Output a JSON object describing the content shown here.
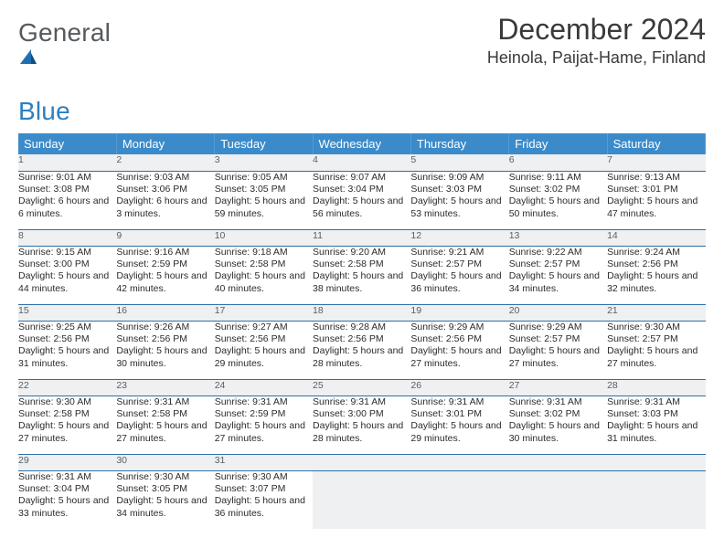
{
  "brand": {
    "name_a": "General",
    "name_b": "Blue",
    "accent": "#2f7fc0"
  },
  "title": "December 2024",
  "location": "Heinola, Paijat-Hame, Finland",
  "header_bg": "#3b8bca",
  "daynum_bg": "#eef0f2",
  "rule_color": "#2f6fa8",
  "weekdays": [
    "Sunday",
    "Monday",
    "Tuesday",
    "Wednesday",
    "Thursday",
    "Friday",
    "Saturday"
  ],
  "weeks": [
    {
      "days": [
        {
          "n": "1",
          "sunrise": "Sunrise: 9:01 AM",
          "sunset": "Sunset: 3:08 PM",
          "daylight": "Daylight: 6 hours and 6 minutes."
        },
        {
          "n": "2",
          "sunrise": "Sunrise: 9:03 AM",
          "sunset": "Sunset: 3:06 PM",
          "daylight": "Daylight: 6 hours and 3 minutes."
        },
        {
          "n": "3",
          "sunrise": "Sunrise: 9:05 AM",
          "sunset": "Sunset: 3:05 PM",
          "daylight": "Daylight: 5 hours and 59 minutes."
        },
        {
          "n": "4",
          "sunrise": "Sunrise: 9:07 AM",
          "sunset": "Sunset: 3:04 PM",
          "daylight": "Daylight: 5 hours and 56 minutes."
        },
        {
          "n": "5",
          "sunrise": "Sunrise: 9:09 AM",
          "sunset": "Sunset: 3:03 PM",
          "daylight": "Daylight: 5 hours and 53 minutes."
        },
        {
          "n": "6",
          "sunrise": "Sunrise: 9:11 AM",
          "sunset": "Sunset: 3:02 PM",
          "daylight": "Daylight: 5 hours and 50 minutes."
        },
        {
          "n": "7",
          "sunrise": "Sunrise: 9:13 AM",
          "sunset": "Sunset: 3:01 PM",
          "daylight": "Daylight: 5 hours and 47 minutes."
        }
      ]
    },
    {
      "days": [
        {
          "n": "8",
          "sunrise": "Sunrise: 9:15 AM",
          "sunset": "Sunset: 3:00 PM",
          "daylight": "Daylight: 5 hours and 44 minutes."
        },
        {
          "n": "9",
          "sunrise": "Sunrise: 9:16 AM",
          "sunset": "Sunset: 2:59 PM",
          "daylight": "Daylight: 5 hours and 42 minutes."
        },
        {
          "n": "10",
          "sunrise": "Sunrise: 9:18 AM",
          "sunset": "Sunset: 2:58 PM",
          "daylight": "Daylight: 5 hours and 40 minutes."
        },
        {
          "n": "11",
          "sunrise": "Sunrise: 9:20 AM",
          "sunset": "Sunset: 2:58 PM",
          "daylight": "Daylight: 5 hours and 38 minutes."
        },
        {
          "n": "12",
          "sunrise": "Sunrise: 9:21 AM",
          "sunset": "Sunset: 2:57 PM",
          "daylight": "Daylight: 5 hours and 36 minutes."
        },
        {
          "n": "13",
          "sunrise": "Sunrise: 9:22 AM",
          "sunset": "Sunset: 2:57 PM",
          "daylight": "Daylight: 5 hours and 34 minutes."
        },
        {
          "n": "14",
          "sunrise": "Sunrise: 9:24 AM",
          "sunset": "Sunset: 2:56 PM",
          "daylight": "Daylight: 5 hours and 32 minutes."
        }
      ]
    },
    {
      "days": [
        {
          "n": "15",
          "sunrise": "Sunrise: 9:25 AM",
          "sunset": "Sunset: 2:56 PM",
          "daylight": "Daylight: 5 hours and 31 minutes."
        },
        {
          "n": "16",
          "sunrise": "Sunrise: 9:26 AM",
          "sunset": "Sunset: 2:56 PM",
          "daylight": "Daylight: 5 hours and 30 minutes."
        },
        {
          "n": "17",
          "sunrise": "Sunrise: 9:27 AM",
          "sunset": "Sunset: 2:56 PM",
          "daylight": "Daylight: 5 hours and 29 minutes."
        },
        {
          "n": "18",
          "sunrise": "Sunrise: 9:28 AM",
          "sunset": "Sunset: 2:56 PM",
          "daylight": "Daylight: 5 hours and 28 minutes."
        },
        {
          "n": "19",
          "sunrise": "Sunrise: 9:29 AM",
          "sunset": "Sunset: 2:56 PM",
          "daylight": "Daylight: 5 hours and 27 minutes."
        },
        {
          "n": "20",
          "sunrise": "Sunrise: 9:29 AM",
          "sunset": "Sunset: 2:57 PM",
          "daylight": "Daylight: 5 hours and 27 minutes."
        },
        {
          "n": "21",
          "sunrise": "Sunrise: 9:30 AM",
          "sunset": "Sunset: 2:57 PM",
          "daylight": "Daylight: 5 hours and 27 minutes."
        }
      ]
    },
    {
      "days": [
        {
          "n": "22",
          "sunrise": "Sunrise: 9:30 AM",
          "sunset": "Sunset: 2:58 PM",
          "daylight": "Daylight: 5 hours and 27 minutes."
        },
        {
          "n": "23",
          "sunrise": "Sunrise: 9:31 AM",
          "sunset": "Sunset: 2:58 PM",
          "daylight": "Daylight: 5 hours and 27 minutes."
        },
        {
          "n": "24",
          "sunrise": "Sunrise: 9:31 AM",
          "sunset": "Sunset: 2:59 PM",
          "daylight": "Daylight: 5 hours and 27 minutes."
        },
        {
          "n": "25",
          "sunrise": "Sunrise: 9:31 AM",
          "sunset": "Sunset: 3:00 PM",
          "daylight": "Daylight: 5 hours and 28 minutes."
        },
        {
          "n": "26",
          "sunrise": "Sunrise: 9:31 AM",
          "sunset": "Sunset: 3:01 PM",
          "daylight": "Daylight: 5 hours and 29 minutes."
        },
        {
          "n": "27",
          "sunrise": "Sunrise: 9:31 AM",
          "sunset": "Sunset: 3:02 PM",
          "daylight": "Daylight: 5 hours and 30 minutes."
        },
        {
          "n": "28",
          "sunrise": "Sunrise: 9:31 AM",
          "sunset": "Sunset: 3:03 PM",
          "daylight": "Daylight: 5 hours and 31 minutes."
        }
      ]
    },
    {
      "days": [
        {
          "n": "29",
          "sunrise": "Sunrise: 9:31 AM",
          "sunset": "Sunset: 3:04 PM",
          "daylight": "Daylight: 5 hours and 33 minutes."
        },
        {
          "n": "30",
          "sunrise": "Sunrise: 9:30 AM",
          "sunset": "Sunset: 3:05 PM",
          "daylight": "Daylight: 5 hours and 34 minutes."
        },
        {
          "n": "31",
          "sunrise": "Sunrise: 9:30 AM",
          "sunset": "Sunset: 3:07 PM",
          "daylight": "Daylight: 5 hours and 36 minutes."
        },
        {
          "blank": true
        },
        {
          "blank": true
        },
        {
          "blank": true
        },
        {
          "blank": true
        }
      ]
    }
  ]
}
